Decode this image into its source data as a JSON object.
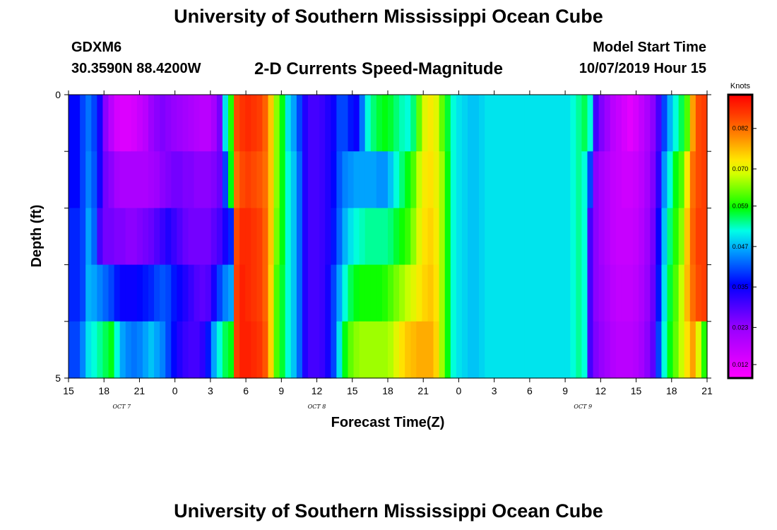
{
  "header": {
    "title": "University of Southern Mississippi Ocean Cube",
    "station_id": "GDXM6",
    "coords": "30.3590N 88.4200W",
    "subtitle": "2-D Currents Speed-Magnitude",
    "model_start_label": "Model Start Time",
    "model_start_value": "10/07/2019 Hour 15"
  },
  "footer": {
    "title": "University of Southern Mississippi Ocean Cube"
  },
  "chart_data": {
    "type": "heatmap",
    "title": "2-D Currents Speed-Magnitude",
    "xlabel": "Forecast Time(Z)",
    "ylabel": "Depth (ft)",
    "x_tick_labels": [
      "15",
      "18",
      "21",
      "0",
      "3",
      "6",
      "9",
      "12",
      "15",
      "18",
      "21",
      "0",
      "3",
      "6",
      "9",
      "12",
      "15",
      "18",
      "21"
    ],
    "date_labels": [
      {
        "label": "OCT 7",
        "tick_index": 1.5
      },
      {
        "label": "OCT 8",
        "tick_index": 7
      },
      {
        "label": "OCT 9",
        "tick_index": 14.5
      }
    ],
    "y_range": [
      0,
      5
    ],
    "y_tick_labels": [
      "0",
      "5"
    ],
    "colorbar": {
      "unit": "Knots",
      "min": 0.008,
      "max": 0.092,
      "tick_values": [
        0.012,
        0.023,
        0.035,
        0.047,
        0.059,
        0.07,
        0.082
      ],
      "tick_labels": [
        "0.012",
        "0.023",
        "0.035",
        "0.047",
        "0.059",
        "0.070",
        "0.082"
      ]
    },
    "depth_layers": 5,
    "hours_start": 0,
    "hours_step": 1,
    "speed_knots_by_layer": [
      [
        0.036,
        0.036,
        0.04,
        0.043,
        0.04,
        0.034,
        0.024,
        0.018,
        0.014,
        0.013,
        0.013,
        0.014,
        0.016,
        0.018,
        0.022,
        0.024,
        0.025,
        0.024,
        0.023,
        0.022,
        0.021,
        0.02,
        0.019,
        0.018,
        0.018,
        0.021,
        0.026,
        0.05,
        0.06,
        0.085,
        0.087,
        0.088,
        0.087,
        0.086,
        0.083,
        0.075,
        0.065,
        0.058,
        0.05,
        0.046,
        0.04,
        0.033,
        0.03,
        0.03,
        0.031,
        0.033,
        0.035,
        0.04,
        0.04,
        0.037,
        0.035,
        0.043,
        0.052,
        0.055,
        0.057,
        0.058,
        0.057,
        0.055,
        0.053,
        0.052,
        0.055,
        0.063,
        0.07,
        0.072,
        0.07,
        0.063,
        0.057,
        0.052,
        0.05,
        0.049,
        0.048,
        0.048,
        0.049,
        0.05,
        0.05,
        0.05,
        0.05,
        0.05,
        0.05,
        0.05,
        0.05,
        0.05,
        0.05,
        0.05,
        0.05,
        0.05,
        0.05,
        0.05,
        0.052,
        0.054,
        0.056,
        0.052,
        0.03,
        0.025,
        0.022,
        0.018,
        0.016,
        0.014,
        0.012,
        0.014,
        0.017,
        0.02,
        0.024,
        0.03,
        0.04,
        0.047,
        0.052,
        0.056,
        0.062,
        0.078,
        0.085,
        0.086
      ],
      [
        0.036,
        0.036,
        0.04,
        0.044,
        0.041,
        0.034,
        0.026,
        0.024,
        0.021,
        0.02,
        0.02,
        0.02,
        0.02,
        0.02,
        0.021,
        0.022,
        0.024,
        0.025,
        0.026,
        0.026,
        0.025,
        0.025,
        0.024,
        0.024,
        0.024,
        0.025,
        0.027,
        0.04,
        0.058,
        0.082,
        0.085,
        0.086,
        0.085,
        0.084,
        0.082,
        0.075,
        0.065,
        0.058,
        0.052,
        0.048,
        0.042,
        0.033,
        0.03,
        0.03,
        0.031,
        0.033,
        0.036,
        0.041,
        0.044,
        0.045,
        0.046,
        0.046,
        0.046,
        0.046,
        0.045,
        0.045,
        0.048,
        0.052,
        0.055,
        0.058,
        0.062,
        0.068,
        0.072,
        0.073,
        0.071,
        0.066,
        0.058,
        0.052,
        0.05,
        0.049,
        0.048,
        0.048,
        0.049,
        0.05,
        0.05,
        0.05,
        0.05,
        0.05,
        0.05,
        0.05,
        0.05,
        0.05,
        0.05,
        0.05,
        0.05,
        0.05,
        0.05,
        0.05,
        0.052,
        0.054,
        0.052,
        0.04,
        0.024,
        0.021,
        0.019,
        0.017,
        0.016,
        0.015,
        0.015,
        0.016,
        0.018,
        0.021,
        0.025,
        0.032,
        0.045,
        0.052,
        0.058,
        0.062,
        0.072,
        0.082,
        0.085,
        0.086
      ],
      [
        0.038,
        0.038,
        0.04,
        0.046,
        0.042,
        0.03,
        0.026,
        0.026,
        0.025,
        0.025,
        0.024,
        0.024,
        0.025,
        0.026,
        0.027,
        0.029,
        0.031,
        0.033,
        0.031,
        0.029,
        0.027,
        0.026,
        0.026,
        0.026,
        0.026,
        0.028,
        0.03,
        0.034,
        0.038,
        0.085,
        0.088,
        0.088,
        0.087,
        0.086,
        0.083,
        0.075,
        0.064,
        0.058,
        0.052,
        0.048,
        0.042,
        0.033,
        0.03,
        0.03,
        0.031,
        0.033,
        0.037,
        0.042,
        0.047,
        0.05,
        0.052,
        0.053,
        0.054,
        0.054,
        0.054,
        0.054,
        0.055,
        0.057,
        0.059,
        0.061,
        0.065,
        0.07,
        0.073,
        0.074,
        0.072,
        0.066,
        0.058,
        0.052,
        0.05,
        0.049,
        0.048,
        0.048,
        0.049,
        0.05,
        0.05,
        0.05,
        0.05,
        0.05,
        0.05,
        0.05,
        0.05,
        0.05,
        0.05,
        0.05,
        0.05,
        0.05,
        0.05,
        0.05,
        0.052,
        0.054,
        0.052,
        0.03,
        0.024,
        0.021,
        0.019,
        0.017,
        0.016,
        0.016,
        0.016,
        0.017,
        0.019,
        0.022,
        0.026,
        0.035,
        0.048,
        0.055,
        0.06,
        0.065,
        0.075,
        0.083,
        0.086,
        0.086
      ],
      [
        0.038,
        0.038,
        0.04,
        0.047,
        0.046,
        0.044,
        0.042,
        0.04,
        0.037,
        0.035,
        0.035,
        0.035,
        0.036,
        0.037,
        0.038,
        0.04,
        0.041,
        0.04,
        0.037,
        0.035,
        0.033,
        0.031,
        0.029,
        0.028,
        0.029,
        0.034,
        0.04,
        0.044,
        0.046,
        0.086,
        0.089,
        0.088,
        0.087,
        0.086,
        0.083,
        0.074,
        0.062,
        0.057,
        0.052,
        0.048,
        0.042,
        0.033,
        0.03,
        0.03,
        0.031,
        0.034,
        0.04,
        0.046,
        0.052,
        0.056,
        0.058,
        0.059,
        0.059,
        0.059,
        0.059,
        0.06,
        0.062,
        0.064,
        0.066,
        0.068,
        0.07,
        0.072,
        0.074,
        0.075,
        0.073,
        0.066,
        0.058,
        0.052,
        0.05,
        0.049,
        0.048,
        0.048,
        0.049,
        0.05,
        0.05,
        0.05,
        0.05,
        0.05,
        0.05,
        0.05,
        0.05,
        0.05,
        0.05,
        0.05,
        0.05,
        0.05,
        0.05,
        0.05,
        0.052,
        0.054,
        0.052,
        0.03,
        0.024,
        0.022,
        0.02,
        0.018,
        0.017,
        0.017,
        0.017,
        0.018,
        0.02,
        0.023,
        0.027,
        0.037,
        0.05,
        0.057,
        0.062,
        0.068,
        0.076,
        0.082,
        0.085,
        0.086
      ],
      [
        0.04,
        0.04,
        0.044,
        0.05,
        0.052,
        0.054,
        0.056,
        0.058,
        0.052,
        0.046,
        0.044,
        0.043,
        0.044,
        0.046,
        0.048,
        0.046,
        0.044,
        0.04,
        0.036,
        0.033,
        0.031,
        0.03,
        0.03,
        0.032,
        0.037,
        0.046,
        0.052,
        0.056,
        0.058,
        0.086,
        0.089,
        0.089,
        0.088,
        0.087,
        0.084,
        0.074,
        0.062,
        0.057,
        0.052,
        0.048,
        0.042,
        0.033,
        0.03,
        0.03,
        0.031,
        0.034,
        0.04,
        0.05,
        0.058,
        0.063,
        0.065,
        0.066,
        0.066,
        0.066,
        0.066,
        0.066,
        0.067,
        0.07,
        0.073,
        0.075,
        0.076,
        0.077,
        0.077,
        0.077,
        0.074,
        0.066,
        0.058,
        0.052,
        0.05,
        0.049,
        0.048,
        0.048,
        0.049,
        0.05,
        0.05,
        0.05,
        0.05,
        0.05,
        0.05,
        0.05,
        0.05,
        0.05,
        0.05,
        0.05,
        0.05,
        0.05,
        0.05,
        0.05,
        0.052,
        0.054,
        0.052,
        0.03,
        0.025,
        0.023,
        0.021,
        0.019,
        0.018,
        0.018,
        0.018,
        0.019,
        0.021,
        0.024,
        0.028,
        0.04,
        0.052,
        0.058,
        0.063,
        0.068,
        0.073,
        0.078,
        0.07,
        0.06
      ]
    ]
  }
}
